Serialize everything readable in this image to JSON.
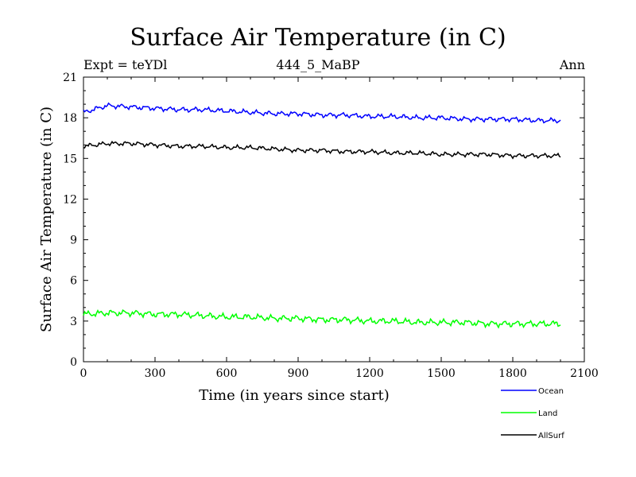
{
  "chart_data": {
    "type": "line",
    "title": "Surface Air Temperature (in C)",
    "subtitle": "444_5_MaBP",
    "expt_label": "Expt = teYDl",
    "period_label": "Ann",
    "xlabel": "Time (in years since start)",
    "ylabel": "Surface Air Temperature (in C)",
    "xlim": [
      0,
      2100
    ],
    "ylim": [
      0,
      21
    ],
    "xticks": [
      0,
      300,
      600,
      900,
      1200,
      1500,
      1800,
      2100
    ],
    "yticks": [
      0,
      3,
      6,
      9,
      12,
      15,
      18,
      21
    ],
    "legend_position": "bottom-right-outside",
    "series": [
      {
        "name": "Ocean",
        "color": "#0000ff",
        "x": [
          0,
          100,
          200,
          300,
          400,
          500,
          600,
          700,
          800,
          900,
          1000,
          1100,
          1200,
          1300,
          1400,
          1500,
          1600,
          1700,
          1800,
          1900,
          2000
        ],
        "values": [
          18.4,
          18.9,
          18.8,
          18.7,
          18.6,
          18.6,
          18.5,
          18.4,
          18.3,
          18.3,
          18.2,
          18.2,
          18.1,
          18.1,
          18.0,
          18.0,
          17.9,
          17.9,
          17.9,
          17.8,
          17.8
        ]
      },
      {
        "name": "Land",
        "color": "#00ff00",
        "x": [
          0,
          100,
          200,
          300,
          400,
          500,
          600,
          700,
          800,
          900,
          1000,
          1100,
          1200,
          1300,
          1400,
          1500,
          1600,
          1700,
          1800,
          1900,
          2000
        ],
        "values": [
          3.5,
          3.6,
          3.6,
          3.5,
          3.5,
          3.4,
          3.3,
          3.3,
          3.2,
          3.2,
          3.1,
          3.1,
          3.0,
          3.0,
          2.9,
          2.9,
          2.9,
          2.8,
          2.8,
          2.8,
          2.8
        ]
      },
      {
        "name": "AllSurf",
        "color": "#000000",
        "x": [
          0,
          100,
          200,
          300,
          400,
          500,
          600,
          700,
          800,
          900,
          1000,
          1100,
          1200,
          1300,
          1400,
          1500,
          1600,
          1700,
          1800,
          1900,
          2000
        ],
        "values": [
          15.9,
          16.1,
          16.1,
          16.0,
          15.9,
          15.9,
          15.8,
          15.8,
          15.7,
          15.6,
          15.6,
          15.5,
          15.5,
          15.4,
          15.4,
          15.3,
          15.3,
          15.3,
          15.2,
          15.2,
          15.2
        ]
      }
    ]
  }
}
